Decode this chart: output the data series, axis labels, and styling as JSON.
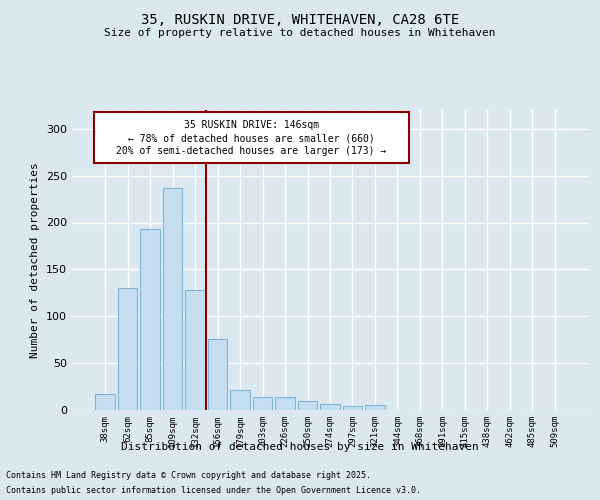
{
  "title_line1": "35, RUSKIN DRIVE, WHITEHAVEN, CA28 6TE",
  "title_line2": "Size of property relative to detached houses in Whitehaven",
  "xlabel": "Distribution of detached houses by size in Whitehaven",
  "ylabel": "Number of detached properties",
  "categories": [
    "38sqm",
    "62sqm",
    "85sqm",
    "109sqm",
    "132sqm",
    "156sqm",
    "179sqm",
    "203sqm",
    "226sqm",
    "250sqm",
    "274sqm",
    "297sqm",
    "321sqm",
    "344sqm",
    "368sqm",
    "391sqm",
    "415sqm",
    "438sqm",
    "462sqm",
    "485sqm",
    "509sqm"
  ],
  "values": [
    17,
    130,
    193,
    237,
    128,
    76,
    21,
    14,
    14,
    10,
    6,
    4,
    5,
    0,
    0,
    0,
    0,
    0,
    0,
    0,
    0
  ],
  "bar_color": "#c5dff0",
  "bar_edge_color": "#7fb4d4",
  "bg_color": "#dce8f0",
  "grid_color": "#ffffff",
  "vline_x_index": 4.5,
  "vline_color": "#8b0000",
  "annotation_line1": "35 RUSKIN DRIVE: 146sqm",
  "annotation_line2": "← 78% of detached houses are smaller (660)",
  "annotation_line3": "20% of semi-detached houses are larger (173) →",
  "annotation_box_color": "#8b0000",
  "footer1": "Contains HM Land Registry data © Crown copyright and database right 2025.",
  "footer2": "Contains public sector information licensed under the Open Government Licence v3.0.",
  "ylim_max": 320,
  "yticks": [
    0,
    50,
    100,
    150,
    200,
    250,
    300
  ]
}
